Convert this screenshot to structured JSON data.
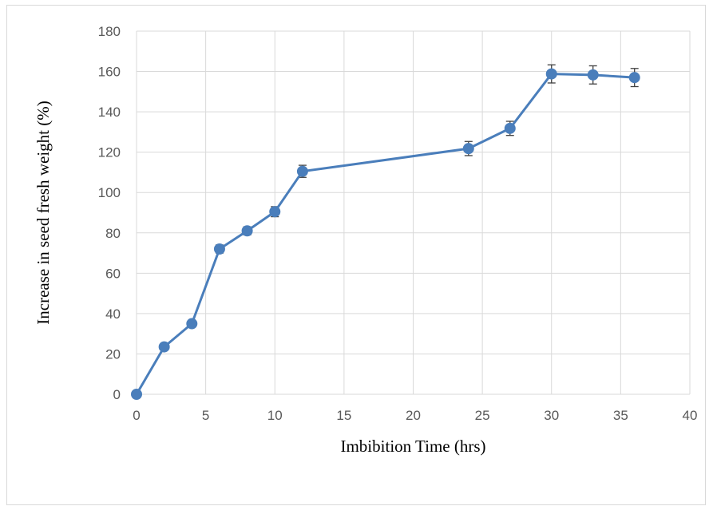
{
  "chart_data": {
    "type": "line",
    "title": "",
    "xlabel": "Imbibition Time (hrs)",
    "ylabel": "Increase in seed fresh weight (%)",
    "xlim": [
      0,
      40
    ],
    "ylim": [
      0,
      180
    ],
    "x_ticks": [
      0,
      5,
      10,
      15,
      20,
      25,
      30,
      35,
      40
    ],
    "y_ticks": [
      0,
      20,
      40,
      60,
      80,
      100,
      120,
      140,
      160,
      180
    ],
    "grid": true,
    "legend": "none",
    "series": [
      {
        "color": "#4a7ebb",
        "x": [
          0,
          2,
          4,
          6,
          8,
          10,
          12,
          24,
          27,
          30,
          33,
          36
        ],
        "y": [
          0,
          23.5,
          35,
          72,
          81,
          90.5,
          110.5,
          121.8,
          131.8,
          158.8,
          158.3,
          157
        ],
        "error": [
          0.5,
          1.5,
          1.5,
          2,
          2,
          2.5,
          3,
          3.5,
          3.5,
          4.5,
          4.5,
          4.5
        ]
      }
    ]
  }
}
